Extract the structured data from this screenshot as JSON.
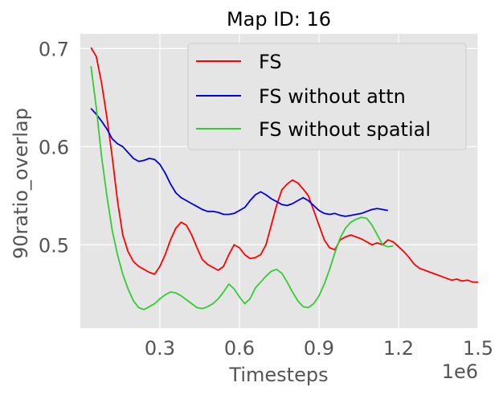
{
  "chart_data": {
    "type": "line",
    "title": "Map ID: 16",
    "xlabel": "Timesteps",
    "ylabel": "90ratio_overlap",
    "x_offset_label": "1e6",
    "xlim": [
      0.0,
      1.5
    ],
    "ylim": [
      0.415,
      0.715
    ],
    "x_ticks": [
      0.3,
      0.6,
      0.9,
      1.2,
      1.5
    ],
    "x_tick_labels": [
      "0.3",
      "0.6",
      "0.9",
      "1.2",
      "1.5"
    ],
    "y_ticks": [
      0.5,
      0.6,
      0.7
    ],
    "y_tick_labels": [
      "0.5",
      "0.6",
      "0.7"
    ],
    "grid": true,
    "legend_position": "top-right",
    "series": [
      {
        "name": "FS",
        "color": "#ff0000",
        "points": [
          [
            0.04,
            0.701
          ],
          [
            0.06,
            0.692
          ],
          [
            0.08,
            0.665
          ],
          [
            0.1,
            0.63
          ],
          [
            0.12,
            0.59
          ],
          [
            0.14,
            0.545
          ],
          [
            0.16,
            0.51
          ],
          [
            0.18,
            0.493
          ],
          [
            0.2,
            0.483
          ],
          [
            0.22,
            0.478
          ],
          [
            0.24,
            0.475
          ],
          [
            0.26,
            0.472
          ],
          [
            0.28,
            0.47
          ],
          [
            0.3,
            0.478
          ],
          [
            0.32,
            0.49
          ],
          [
            0.34,
            0.505
          ],
          [
            0.36,
            0.517
          ],
          [
            0.38,
            0.523
          ],
          [
            0.4,
            0.52
          ],
          [
            0.42,
            0.51
          ],
          [
            0.44,
            0.497
          ],
          [
            0.46,
            0.485
          ],
          [
            0.48,
            0.48
          ],
          [
            0.5,
            0.477
          ],
          [
            0.52,
            0.474
          ],
          [
            0.54,
            0.478
          ],
          [
            0.56,
            0.49
          ],
          [
            0.58,
            0.5
          ],
          [
            0.6,
            0.497
          ],
          [
            0.62,
            0.49
          ],
          [
            0.64,
            0.486
          ],
          [
            0.66,
            0.487
          ],
          [
            0.68,
            0.49
          ],
          [
            0.7,
            0.5
          ],
          [
            0.72,
            0.52
          ],
          [
            0.74,
            0.54
          ],
          [
            0.76,
            0.556
          ],
          [
            0.78,
            0.562
          ],
          [
            0.8,
            0.566
          ],
          [
            0.82,
            0.563
          ],
          [
            0.84,
            0.557
          ],
          [
            0.86,
            0.55
          ],
          [
            0.88,
            0.535
          ],
          [
            0.9,
            0.52
          ],
          [
            0.92,
            0.505
          ],
          [
            0.94,
            0.497
          ],
          [
            0.96,
            0.495
          ],
          [
            0.98,
            0.505
          ],
          [
            1.0,
            0.508
          ],
          [
            1.02,
            0.51
          ],
          [
            1.04,
            0.508
          ],
          [
            1.06,
            0.506
          ],
          [
            1.08,
            0.503
          ],
          [
            1.1,
            0.5
          ],
          [
            1.12,
            0.502
          ],
          [
            1.14,
            0.5
          ],
          [
            1.16,
            0.505
          ],
          [
            1.18,
            0.503
          ],
          [
            1.2,
            0.498
          ],
          [
            1.22,
            0.493
          ],
          [
            1.24,
            0.487
          ],
          [
            1.26,
            0.48
          ],
          [
            1.28,
            0.476
          ],
          [
            1.3,
            0.474
          ],
          [
            1.32,
            0.472
          ],
          [
            1.34,
            0.47
          ],
          [
            1.36,
            0.468
          ],
          [
            1.38,
            0.466
          ],
          [
            1.4,
            0.464
          ],
          [
            1.42,
            0.465
          ],
          [
            1.44,
            0.463
          ],
          [
            1.46,
            0.464
          ],
          [
            1.48,
            0.462
          ],
          [
            1.5,
            0.462
          ]
        ]
      },
      {
        "name": "FS without attn",
        "color": "#0000dd",
        "points": [
          [
            0.04,
            0.639
          ],
          [
            0.06,
            0.633
          ],
          [
            0.08,
            0.626
          ],
          [
            0.1,
            0.618
          ],
          [
            0.12,
            0.608
          ],
          [
            0.14,
            0.603
          ],
          [
            0.16,
            0.6
          ],
          [
            0.18,
            0.594
          ],
          [
            0.2,
            0.588
          ],
          [
            0.22,
            0.585
          ],
          [
            0.24,
            0.586
          ],
          [
            0.26,
            0.588
          ],
          [
            0.28,
            0.587
          ],
          [
            0.3,
            0.582
          ],
          [
            0.32,
            0.573
          ],
          [
            0.34,
            0.562
          ],
          [
            0.36,
            0.553
          ],
          [
            0.38,
            0.548
          ],
          [
            0.4,
            0.545
          ],
          [
            0.42,
            0.542
          ],
          [
            0.44,
            0.539
          ],
          [
            0.46,
            0.536
          ],
          [
            0.48,
            0.534
          ],
          [
            0.5,
            0.534
          ],
          [
            0.52,
            0.533
          ],
          [
            0.54,
            0.531
          ],
          [
            0.56,
            0.531
          ],
          [
            0.58,
            0.532
          ],
          [
            0.6,
            0.535
          ],
          [
            0.62,
            0.538
          ],
          [
            0.64,
            0.545
          ],
          [
            0.66,
            0.551
          ],
          [
            0.68,
            0.554
          ],
          [
            0.7,
            0.551
          ],
          [
            0.72,
            0.547
          ],
          [
            0.74,
            0.544
          ],
          [
            0.76,
            0.541
          ],
          [
            0.78,
            0.54
          ],
          [
            0.8,
            0.542
          ],
          [
            0.82,
            0.545
          ],
          [
            0.84,
            0.548
          ],
          [
            0.86,
            0.545
          ],
          [
            0.88,
            0.54
          ],
          [
            0.9,
            0.535
          ],
          [
            0.92,
            0.532
          ],
          [
            0.94,
            0.531
          ],
          [
            0.96,
            0.532
          ],
          [
            0.98,
            0.53
          ],
          [
            1.0,
            0.529
          ],
          [
            1.02,
            0.53
          ],
          [
            1.04,
            0.531
          ],
          [
            1.06,
            0.532
          ],
          [
            1.08,
            0.534
          ],
          [
            1.1,
            0.536
          ],
          [
            1.12,
            0.537
          ],
          [
            1.14,
            0.536
          ],
          [
            1.16,
            0.535
          ]
        ]
      },
      {
        "name": "FS without spatial",
        "color": "#33cc33",
        "points": [
          [
            0.04,
            0.682
          ],
          [
            0.06,
            0.64
          ],
          [
            0.08,
            0.59
          ],
          [
            0.1,
            0.55
          ],
          [
            0.12,
            0.515
          ],
          [
            0.14,
            0.49
          ],
          [
            0.16,
            0.47
          ],
          [
            0.18,
            0.455
          ],
          [
            0.2,
            0.443
          ],
          [
            0.22,
            0.436
          ],
          [
            0.24,
            0.434
          ],
          [
            0.26,
            0.437
          ],
          [
            0.28,
            0.44
          ],
          [
            0.3,
            0.445
          ],
          [
            0.32,
            0.449
          ],
          [
            0.34,
            0.452
          ],
          [
            0.36,
            0.451
          ],
          [
            0.38,
            0.448
          ],
          [
            0.4,
            0.444
          ],
          [
            0.42,
            0.44
          ],
          [
            0.44,
            0.436
          ],
          [
            0.46,
            0.435
          ],
          [
            0.48,
            0.437
          ],
          [
            0.5,
            0.44
          ],
          [
            0.52,
            0.445
          ],
          [
            0.54,
            0.452
          ],
          [
            0.56,
            0.46
          ],
          [
            0.58,
            0.455
          ],
          [
            0.6,
            0.447
          ],
          [
            0.62,
            0.44
          ],
          [
            0.64,
            0.445
          ],
          [
            0.66,
            0.456
          ],
          [
            0.68,
            0.462
          ],
          [
            0.7,
            0.468
          ],
          [
            0.72,
            0.473
          ],
          [
            0.74,
            0.475
          ],
          [
            0.76,
            0.471
          ],
          [
            0.78,
            0.462
          ],
          [
            0.8,
            0.452
          ],
          [
            0.82,
            0.443
          ],
          [
            0.84,
            0.437
          ],
          [
            0.86,
            0.436
          ],
          [
            0.88,
            0.44
          ],
          [
            0.9,
            0.448
          ],
          [
            0.92,
            0.46
          ],
          [
            0.94,
            0.475
          ],
          [
            0.96,
            0.492
          ],
          [
            0.98,
            0.507
          ],
          [
            1.0,
            0.517
          ],
          [
            1.02,
            0.523
          ],
          [
            1.04,
            0.526
          ],
          [
            1.06,
            0.528
          ],
          [
            1.08,
            0.527
          ],
          [
            1.1,
            0.52
          ],
          [
            1.12,
            0.51
          ],
          [
            1.14,
            0.5
          ],
          [
            1.16,
            0.498
          ],
          [
            1.18,
            0.499
          ]
        ]
      }
    ]
  }
}
